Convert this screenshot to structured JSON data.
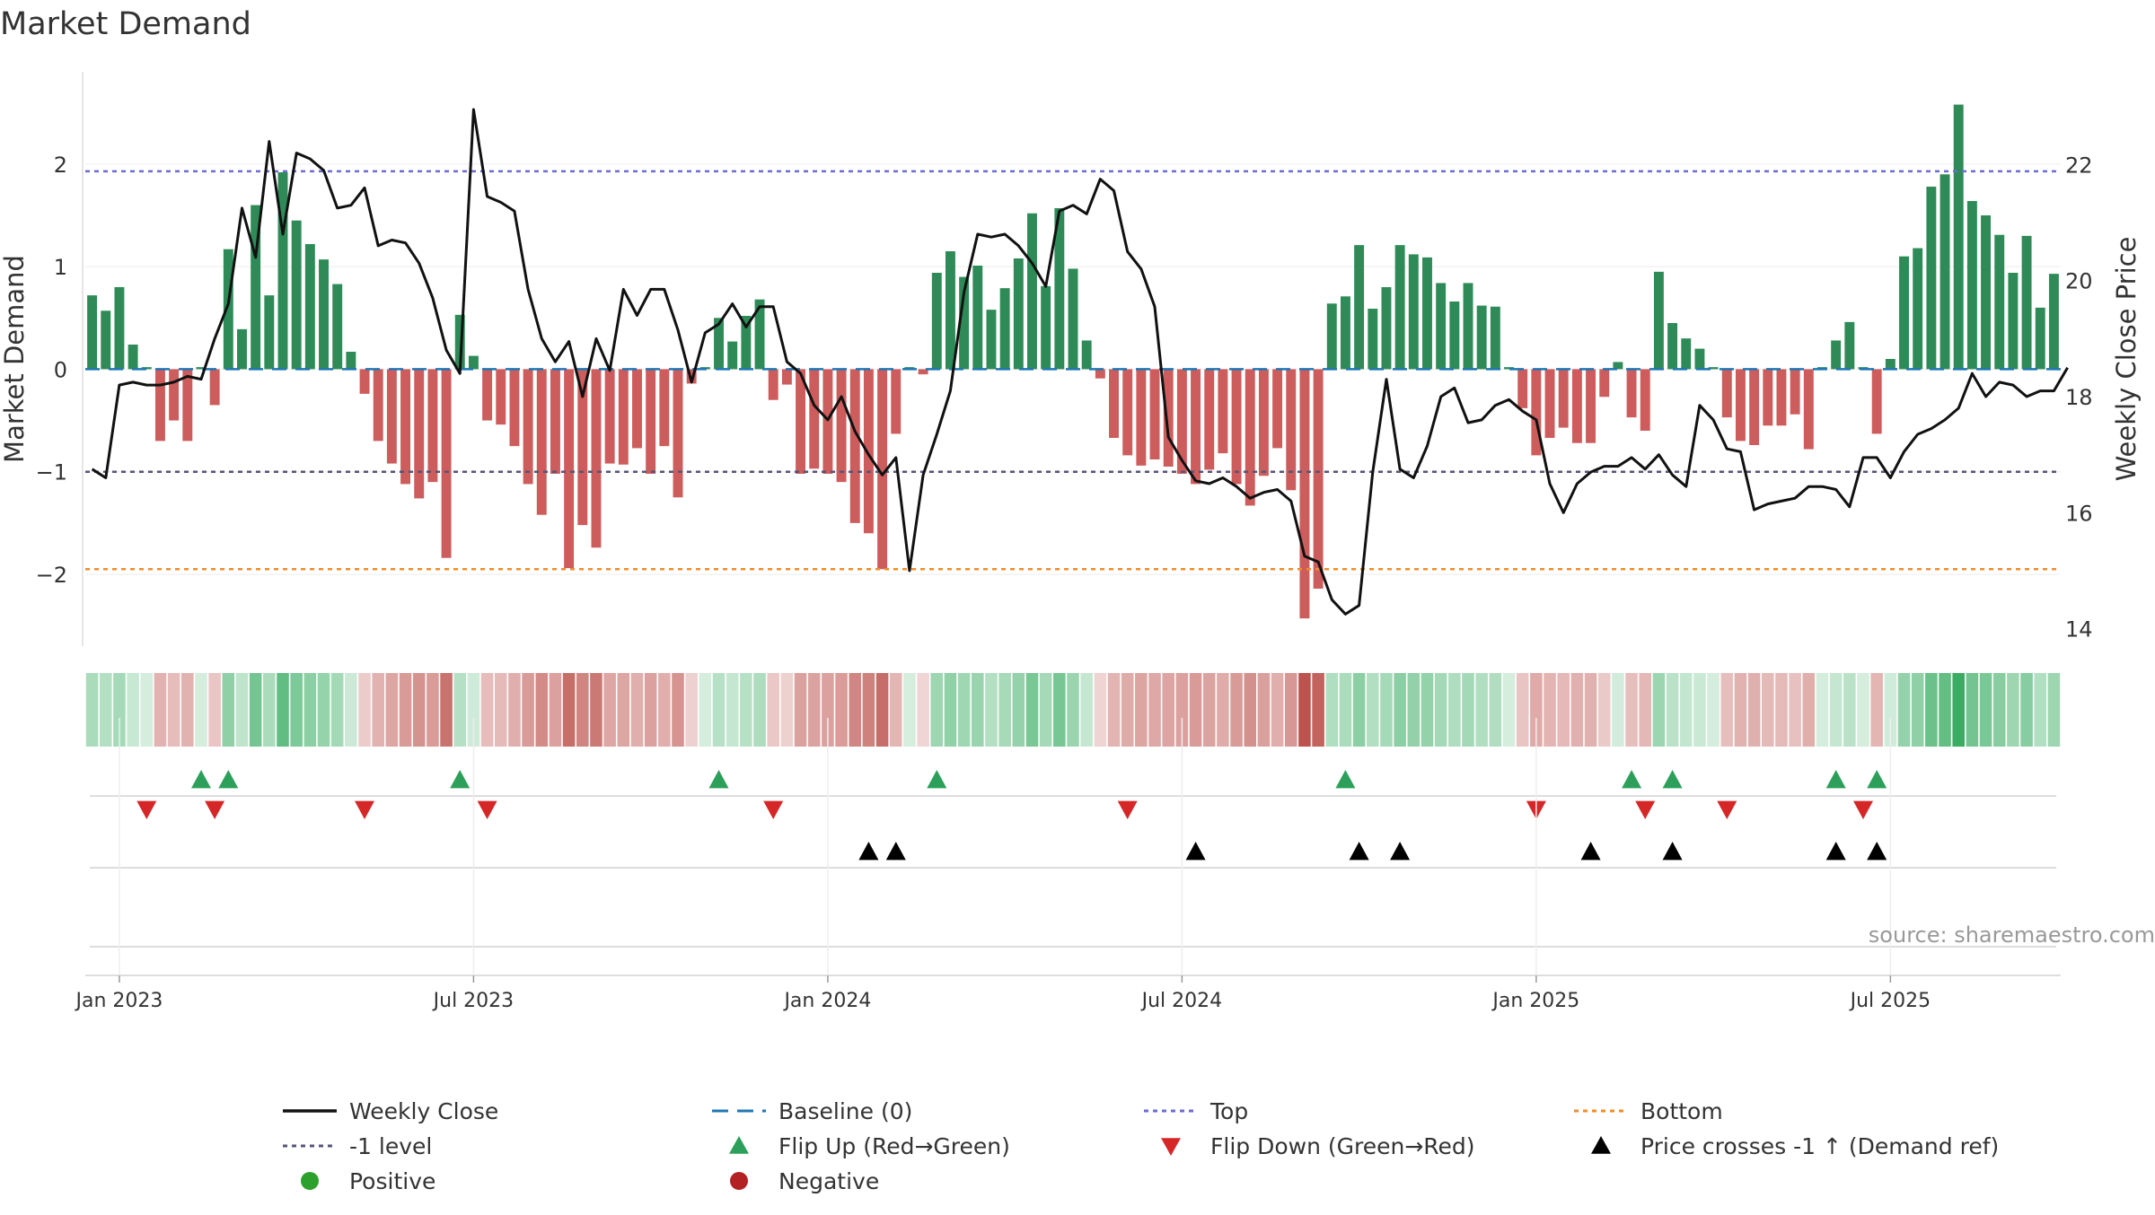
{
  "chart_data": {
    "type": "bar",
    "title": "Market Demand",
    "ylabel_left": "Market Demand",
    "ylabel_right": "Weekly Close Price",
    "source_note": "source: sharemaestro.com",
    "ylim_left": [
      -2.7,
      2.9
    ],
    "ylim_right": [
      13.7,
      23.6
    ],
    "yticks_left": [
      2,
      1,
      0,
      -1,
      -2
    ],
    "yticks_left_labels": [
      "2",
      "1",
      "0",
      "−1",
      "−2"
    ],
    "yticks_right": [
      22,
      20,
      18,
      16,
      14
    ],
    "x_tick_labels": [
      "Jan 2023",
      "Jul 2023",
      "Jan 2024",
      "Jul 2024",
      "Jan 2025",
      "Jul 2025"
    ],
    "x_tick_week_index": [
      2.5,
      28.5,
      54.5,
      80.5,
      106.5,
      132.5
    ],
    "reference_levels": {
      "top": 1.93,
      "minus_one": -1.0,
      "bottom": -1.95,
      "baseline": 0
    },
    "demand": [
      0.72,
      0.57,
      0.8,
      0.24,
      0.02,
      -0.7,
      -0.5,
      -0.7,
      0.02,
      -0.35,
      1.17,
      0.39,
      1.6,
      0.72,
      1.92,
      1.45,
      1.22,
      1.07,
      0.83,
      0.17,
      -0.24,
      -0.7,
      -0.92,
      -1.12,
      -1.26,
      -1.1,
      -1.84,
      0.53,
      0.13,
      -0.5,
      -0.54,
      -0.75,
      -1.12,
      -1.42,
      -1.02,
      -1.94,
      -1.52,
      -1.74,
      -0.92,
      -0.93,
      -0.77,
      -1.02,
      -0.75,
      -1.25,
      -0.14,
      0.02,
      0.5,
      0.27,
      0.52,
      0.68,
      -0.3,
      -0.15,
      -1.02,
      -0.97,
      -1.02,
      -1.1,
      -1.5,
      -1.6,
      -1.95,
      -0.63,
      0.02,
      -0.05,
      0.94,
      1.15,
      0.9,
      1.01,
      0.58,
      0.79,
      1.08,
      1.52,
      0.81,
      1.57,
      0.98,
      0.28,
      -0.09,
      -0.67,
      -0.84,
      -0.94,
      -0.88,
      -0.95,
      -1.02,
      -1.12,
      -0.98,
      -0.82,
      -1.12,
      -1.33,
      -1.04,
      -0.77,
      -1.18,
      -2.43,
      -2.14,
      0.64,
      0.71,
      1.21,
      0.59,
      0.8,
      1.21,
      1.12,
      1.09,
      0.84,
      0.66,
      0.84,
      0.62,
      0.61,
      0.02,
      -0.38,
      -0.84,
      -0.67,
      -0.57,
      -0.72,
      -0.72,
      -0.27,
      0.07,
      -0.47,
      -0.6,
      0.95,
      0.45,
      0.3,
      0.2,
      0.02,
      -0.47,
      -0.7,
      -0.74,
      -0.55,
      -0.55,
      -0.44,
      -0.78,
      0.02,
      0.28,
      0.46,
      0.02,
      -0.63,
      0.1,
      1.1,
      1.18,
      1.78,
      1.9,
      2.58,
      1.64,
      1.5,
      1.31,
      0.94,
      1.3,
      0.6,
      0.93
    ],
    "weekly_close": [
      16.75,
      16.6,
      18.2,
      18.25,
      18.2,
      18.2,
      18.25,
      18.35,
      18.3,
      19.0,
      19.6,
      21.25,
      20.4,
      22.4,
      20.8,
      22.2,
      22.1,
      21.9,
      21.25,
      21.3,
      21.6,
      20.6,
      20.7,
      20.65,
      20.3,
      19.7,
      18.8,
      18.4,
      22.95,
      21.45,
      21.35,
      21.2,
      19.85,
      19.0,
      18.6,
      18.95,
      18.0,
      19.0,
      18.45,
      19.85,
      19.4,
      19.85,
      19.85,
      19.15,
      18.25,
      19.1,
      19.25,
      19.6,
      19.2,
      19.55,
      19.55,
      18.6,
      18.4,
      17.85,
      17.6,
      18.0,
      17.4,
      17.0,
      16.65,
      16.95,
      15.0,
      16.65,
      17.35,
      18.1,
      19.8,
      20.8,
      20.75,
      20.8,
      20.6,
      20.3,
      19.9,
      21.2,
      21.3,
      21.15,
      21.75,
      21.55,
      20.5,
      20.2,
      19.55,
      17.3,
      16.9,
      16.55,
      16.5,
      16.6,
      16.45,
      16.25,
      16.35,
      16.4,
      16.2,
      15.25,
      15.15,
      14.5,
      14.25,
      14.4,
      16.7,
      18.3,
      16.75,
      16.6,
      17.15,
      18.0,
      18.15,
      17.55,
      17.6,
      17.85,
      17.95,
      17.75,
      17.6,
      16.5,
      16.0,
      16.5,
      16.7,
      16.8,
      16.8,
      16.95,
      16.75,
      17.0,
      16.65,
      16.45,
      17.85,
      17.6,
      17.1,
      17.05,
      16.05,
      16.15,
      16.2,
      16.25,
      16.45,
      16.45,
      16.4,
      16.1,
      16.95,
      16.95,
      16.6,
      17.05,
      17.35,
      17.45,
      17.6,
      17.8,
      18.4,
      18.0,
      18.25,
      18.2,
      18.0,
      18.1,
      18.1,
      18.5
    ],
    "flip_up_weeks": [
      8,
      10,
      27,
      46,
      62,
      92,
      113,
      116,
      128,
      131
    ],
    "flip_down_weeks": [
      4,
      9,
      20,
      29,
      50,
      76,
      106,
      114,
      120,
      130
    ],
    "price_cross_weeks": [
      57,
      59,
      81,
      93,
      96,
      110,
      116,
      128,
      131
    ],
    "legend": [
      {
        "label": "Weekly Close",
        "style": "line",
        "color": "#111111"
      },
      {
        "label": "Baseline (0)",
        "style": "dash",
        "color": "#1f77b4"
      },
      {
        "label": "Top",
        "style": "dotted",
        "color": "#6b6bd6"
      },
      {
        "label": "Bottom",
        "style": "dotted",
        "color": "#f28c28"
      },
      {
        "label": "-1 level",
        "style": "dotted",
        "color": "#555577"
      },
      {
        "label": "Flip Up (Red→Green)",
        "style": "triangle-up",
        "color": "#2ca05a"
      },
      {
        "label": "Flip Down (Green→Red)",
        "style": "triangle-down",
        "color": "#d62728"
      },
      {
        "label": "Price crosses -1 ↑ (Demand ref)",
        "style": "triangle-up",
        "color": "#000000"
      },
      {
        "label": "Positive",
        "style": "circle",
        "color": "#2ca02c"
      },
      {
        "label": "Negative",
        "style": "circle",
        "color": "#b22222"
      }
    ],
    "colors": {
      "positive_bar": "#2e8b57",
      "negative_bar": "#cd5c5c",
      "price_line": "#111111",
      "top_line": "#6b6bd6",
      "bottom_line": "#f28c28",
      "minus_one_line": "#555577",
      "baseline": "#1f77b4",
      "flip_up": "#2ca05a",
      "flip_down": "#d62728",
      "price_cross": "#000000",
      "heat_positive_base": "#2fa85a",
      "heat_negative_base": "#b5403a"
    }
  }
}
